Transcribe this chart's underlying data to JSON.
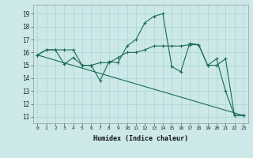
{
  "xlabel": "Humidex (Indice chaleur)",
  "ylabel": "",
  "background_color": "#cce8e8",
  "grid_color": "#aad4d4",
  "line_color": "#1a6b5a",
  "xlim": [
    -0.5,
    23.5
  ],
  "ylim": [
    10.5,
    19.7
  ],
  "yticks": [
    11,
    12,
    13,
    14,
    15,
    16,
    17,
    18,
    19
  ],
  "xticks": [
    0,
    1,
    2,
    3,
    4,
    5,
    6,
    7,
    8,
    9,
    10,
    11,
    12,
    13,
    14,
    15,
    16,
    17,
    18,
    19,
    20,
    21,
    22,
    23
  ],
  "line1_x": [
    0,
    1,
    2,
    3,
    4,
    5,
    6,
    7,
    8,
    9,
    10,
    11,
    12,
    13,
    14,
    15,
    16,
    17,
    18,
    19,
    20,
    21,
    22,
    23
  ],
  "line1_y": [
    15.8,
    16.2,
    16.2,
    15.1,
    15.6,
    15.0,
    15.0,
    13.8,
    15.3,
    15.2,
    16.5,
    17.0,
    18.3,
    18.8,
    19.0,
    14.9,
    14.5,
    16.7,
    16.6,
    15.0,
    15.5,
    13.0,
    11.1,
    11.1
  ],
  "line2_x": [
    0,
    1,
    2,
    3,
    4,
    5,
    6,
    7,
    8,
    9,
    10,
    11,
    12,
    13,
    14,
    15,
    16,
    17,
    18,
    19,
    20,
    21,
    22,
    23
  ],
  "line2_y": [
    15.8,
    16.2,
    16.2,
    16.2,
    16.2,
    15.0,
    15.0,
    15.2,
    15.2,
    15.6,
    16.0,
    16.0,
    16.2,
    16.5,
    16.5,
    16.5,
    16.5,
    16.6,
    16.6,
    15.0,
    15.0,
    15.5,
    11.1,
    11.1
  ],
  "line3_x": [
    0,
    23
  ],
  "line3_y": [
    15.8,
    11.1
  ]
}
